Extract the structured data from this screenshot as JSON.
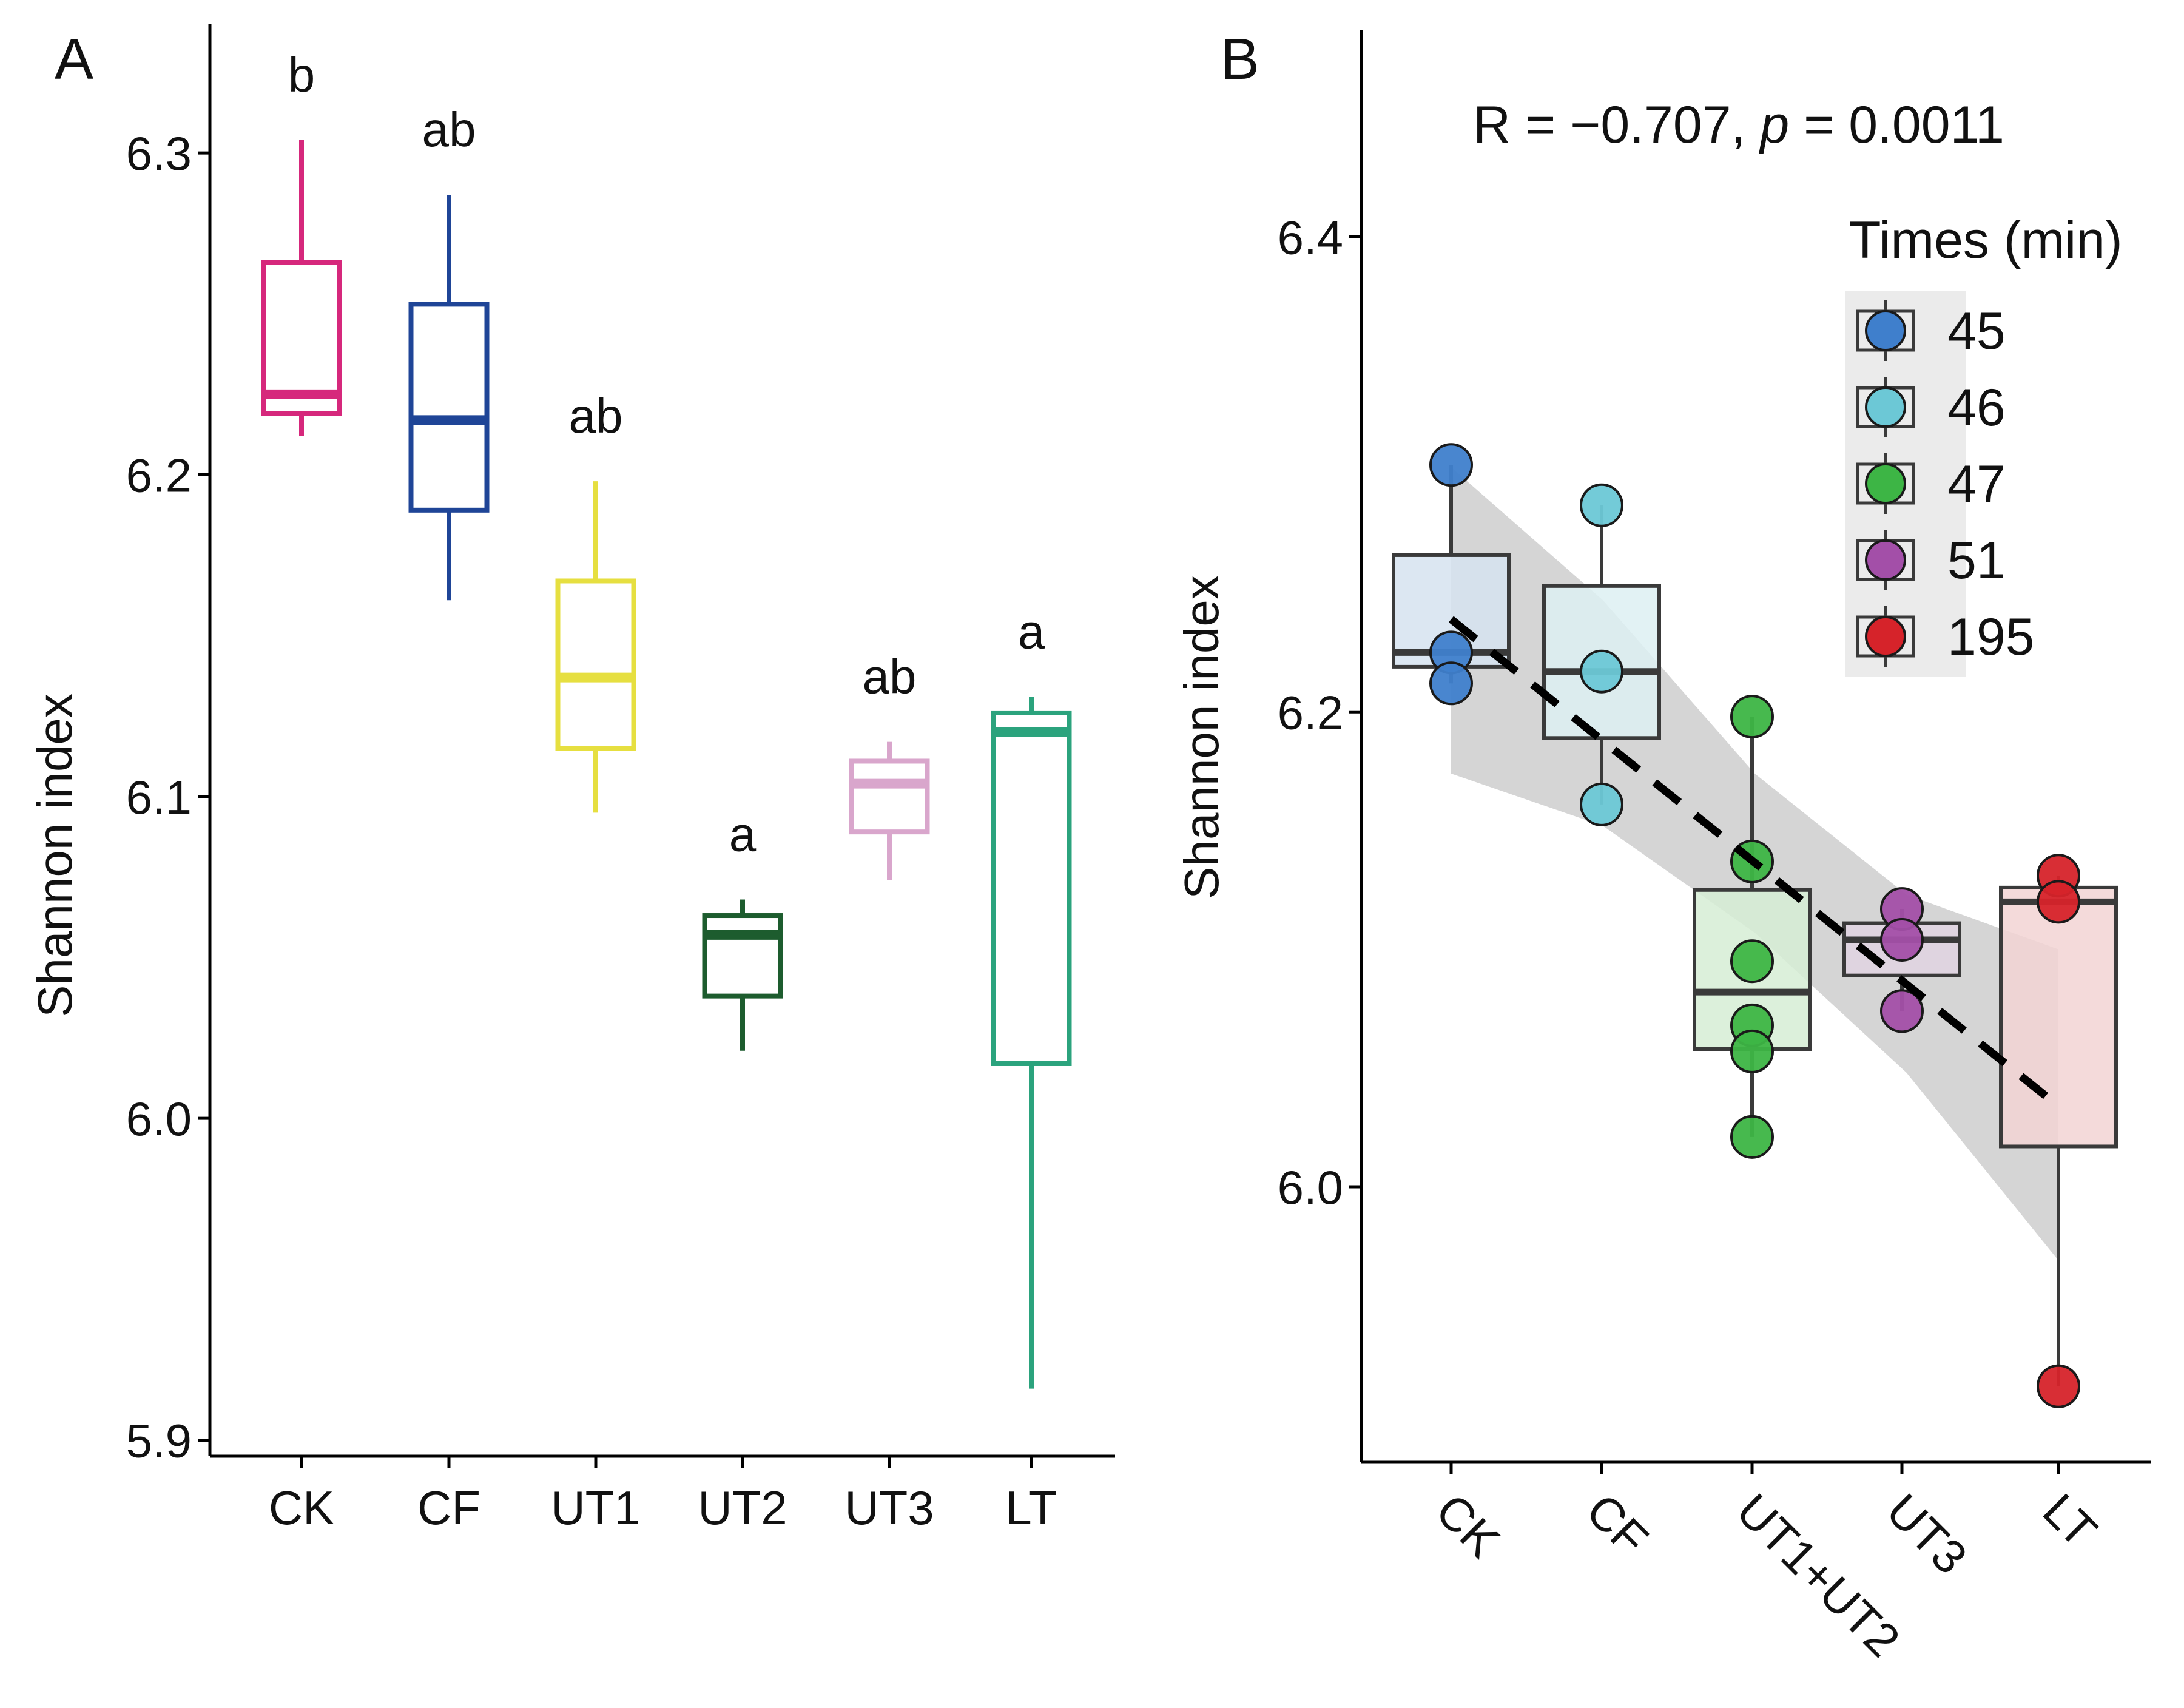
{
  "panel_labels": {
    "a": "A",
    "b": "B"
  },
  "legend": {
    "title": "Times (min)",
    "items": [
      {
        "label": "45",
        "color": "#3F7FCC"
      },
      {
        "label": "46",
        "color": "#6CC8D6"
      },
      {
        "label": "47",
        "color": "#3DB545"
      },
      {
        "label": "51",
        "color": "#A34FA8"
      },
      {
        "label": "195",
        "color": "#D6232A"
      }
    ]
  },
  "stat_annotation": {
    "prefix": "R = −0.707, ",
    "p_symbol": "p",
    "suffix": " = 0.0011"
  },
  "chart_data": [
    {
      "id": "A",
      "type": "box",
      "ylabel": "Shannon index",
      "xlabel": "",
      "ylim": [
        5.895,
        6.34
      ],
      "yticks": [
        "5.9",
        "6.0",
        "6.1",
        "6.2",
        "6.3"
      ],
      "categories": [
        "CK",
        "CF",
        "UT1",
        "UT2",
        "UT3",
        "LT"
      ],
      "colors": [
        "#D6287C",
        "#1F4597",
        "#E6DF40",
        "#1D5C2E",
        "#D9A6CC",
        "#2BA37D"
      ],
      "boxes": [
        {
          "min": 6.212,
          "q1": 6.219,
          "median": 6.225,
          "q3": 6.266,
          "max": 6.304
        },
        {
          "min": 6.161,
          "q1": 6.189,
          "median": 6.217,
          "q3": 6.253,
          "max": 6.287
        },
        {
          "min": 6.095,
          "q1": 6.115,
          "median": 6.137,
          "q3": 6.167,
          "max": 6.198
        },
        {
          "min": 6.021,
          "q1": 6.038,
          "median": 6.057,
          "q3": 6.063,
          "max": 6.068
        },
        {
          "min": 6.074,
          "q1": 6.089,
          "median": 6.104,
          "q3": 6.111,
          "max": 6.117
        },
        {
          "min": 5.916,
          "q1": 6.017,
          "median": 6.12,
          "q3": 6.126,
          "max": 6.131
        }
      ],
      "significance": [
        "b",
        "ab",
        "ab",
        "a",
        "ab",
        "a"
      ]
    },
    {
      "id": "B",
      "type": "box+scatter+regression",
      "ylabel": "Shannon index",
      "xlabel": "",
      "ylim": [
        5.884,
        6.487
      ],
      "yticks": [
        "6.0",
        "6.2",
        "6.4"
      ],
      "categories": [
        "CK",
        "CF",
        "UT1+UT2",
        "UT3",
        "LT"
      ],
      "box_fills": [
        "#D6E3F0",
        "#DDF0F2",
        "#D6EDD5",
        "#E0D4E2",
        "#F2D3D4"
      ],
      "boxes": [
        {
          "min": 6.212,
          "q1": 6.219,
          "median": 6.225,
          "q3": 6.266,
          "max": 6.304
        },
        {
          "min": 6.161,
          "q1": 6.189,
          "median": 6.217,
          "q3": 6.253,
          "max": 6.287
        },
        {
          "min": 6.021,
          "q1": 6.058,
          "median": 6.082,
          "q3": 6.125,
          "max": 6.198
        },
        {
          "min": 6.074,
          "q1": 6.089,
          "median": 6.104,
          "q3": 6.111,
          "max": 6.117
        },
        {
          "min": 5.916,
          "q1": 6.017,
          "median": 6.12,
          "q3": 6.126,
          "max": 6.131
        }
      ],
      "points": [
        {
          "cat": 0,
          "y": 6.304,
          "time": "45"
        },
        {
          "cat": 0,
          "y": 6.225,
          "time": "45"
        },
        {
          "cat": 0,
          "y": 6.212,
          "time": "45"
        },
        {
          "cat": 1,
          "y": 6.287,
          "time": "46"
        },
        {
          "cat": 1,
          "y": 6.217,
          "time": "46"
        },
        {
          "cat": 1,
          "y": 6.161,
          "time": "46"
        },
        {
          "cat": 2,
          "y": 6.198,
          "time": "47"
        },
        {
          "cat": 2,
          "y": 6.137,
          "time": "47"
        },
        {
          "cat": 2,
          "y": 6.095,
          "time": "47"
        },
        {
          "cat": 2,
          "y": 6.068,
          "time": "47"
        },
        {
          "cat": 2,
          "y": 6.057,
          "time": "47"
        },
        {
          "cat": 2,
          "y": 6.021,
          "time": "47"
        },
        {
          "cat": 3,
          "y": 6.117,
          "time": "51"
        },
        {
          "cat": 3,
          "y": 6.104,
          "time": "51"
        },
        {
          "cat": 3,
          "y": 6.074,
          "time": "51"
        },
        {
          "cat": 4,
          "y": 6.131,
          "time": "195"
        },
        {
          "cat": 4,
          "y": 6.12,
          "time": "195"
        },
        {
          "cat": 4,
          "y": 5.916,
          "time": "195"
        }
      ],
      "regression": {
        "line": [
          {
            "x": 0,
            "y": 6.239
          },
          {
            "x": 4,
            "y": 6.034
          }
        ],
        "ci_upper": [
          {
            "x": 0,
            "y": 6.303
          },
          {
            "x": 1,
            "y": 6.247
          },
          {
            "x": 2,
            "y": 6.174
          },
          {
            "x": 3,
            "y": 6.123
          },
          {
            "x": 4,
            "y": 6.1
          }
        ],
        "ci_lower": [
          {
            "x": 0,
            "y": 6.174
          },
          {
            "x": 1,
            "y": 6.152
          },
          {
            "x": 2,
            "y": 6.107
          },
          {
            "x": 3,
            "y": 6.048
          },
          {
            "x": 4,
            "y": 5.969
          }
        ]
      },
      "stat": "R = −0.707, p = 0.0011"
    }
  ]
}
